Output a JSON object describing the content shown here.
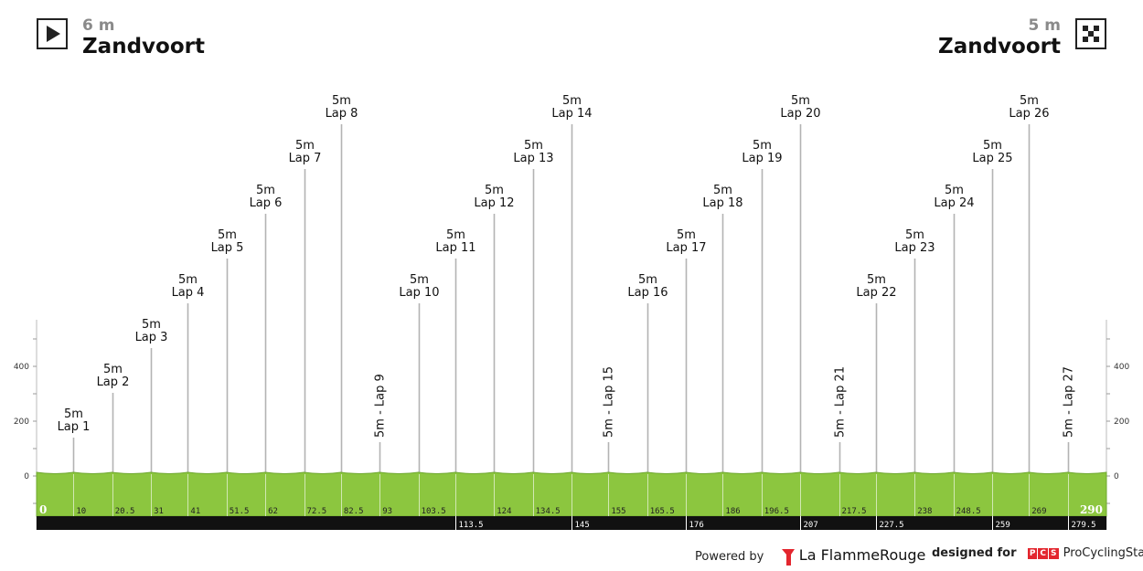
{
  "header": {
    "start": {
      "altitude": "6 m",
      "place": "Zandvoort",
      "icon": "play-icon"
    },
    "finish": {
      "altitude": "5 m",
      "place": "Zandvoort",
      "icon": "checkered-flag-icon"
    }
  },
  "footer": {
    "powered_by": "Powered by",
    "lfr_brand": "La FlammeRouge",
    "designed_for": "designed for",
    "pcs_letters": [
      "P",
      "C",
      "S"
    ],
    "pcs_brand": "ProCyclingStats"
  },
  "colors": {
    "profile_fill": "#8cc63f",
    "profile_line": "#6fa82f",
    "km_bar": "#111111",
    "marker_line": "#b3b3b3"
  },
  "chart_data": {
    "type": "area",
    "title": "",
    "xlabel": "",
    "ylabel": "",
    "x_range": [
      0,
      290
    ],
    "y_range": [
      -150,
      560
    ],
    "y_ticks": [
      0,
      200,
      400
    ],
    "y_tick_labels": [
      "0",
      "200",
      "400"
    ],
    "x": [
      0,
      10,
      20.5,
      31,
      41,
      51.5,
      62,
      72.5,
      82.5,
      93,
      103.5,
      113.5,
      124,
      134.5,
      145,
      155,
      165.5,
      176,
      186,
      196.5,
      207,
      217.5,
      227.5,
      238,
      248.5,
      259,
      269,
      279.5,
      290
    ],
    "elevation": [
      6,
      5,
      5,
      5,
      5,
      5,
      5,
      5,
      5,
      5,
      5,
      5,
      5,
      5,
      5,
      5,
      5,
      5,
      5,
      5,
      5,
      5,
      5,
      5,
      5,
      5,
      5,
      5,
      5
    ],
    "km_labels_top": [
      {
        "km": 10,
        "label": "10"
      },
      {
        "km": 20.5,
        "label": "20.5"
      },
      {
        "km": 31,
        "label": "31"
      },
      {
        "km": 41,
        "label": "41"
      },
      {
        "km": 51.5,
        "label": "51.5"
      },
      {
        "km": 62,
        "label": "62"
      },
      {
        "km": 72.5,
        "label": "72.5"
      },
      {
        "km": 82.5,
        "label": "82.5"
      },
      {
        "km": 93,
        "label": "93"
      },
      {
        "km": 103.5,
        "label": "103.5"
      },
      {
        "km": 124,
        "label": "124"
      },
      {
        "km": 134.5,
        "label": "134.5"
      },
      {
        "km": 155,
        "label": "155"
      },
      {
        "km": 165.5,
        "label": "165.5"
      },
      {
        "km": 186,
        "label": "186"
      },
      {
        "km": 196.5,
        "label": "196.5"
      },
      {
        "km": 217.5,
        "label": "217.5"
      },
      {
        "km": 238,
        "label": "238"
      },
      {
        "km": 248.5,
        "label": "248.5"
      },
      {
        "km": 269,
        "label": "269"
      }
    ],
    "km_labels_bottom": [
      {
        "km": 113.5,
        "label": "113.5"
      },
      {
        "km": 145,
        "label": "145"
      },
      {
        "km": 176,
        "label": "176"
      },
      {
        "km": 207,
        "label": "207"
      },
      {
        "km": 227.5,
        "label": "227.5"
      },
      {
        "km": 259,
        "label": "259"
      },
      {
        "km": 279.5,
        "label": "279.5"
      }
    ],
    "start_km_label": "0",
    "end_km_label": "290",
    "markers": [
      {
        "km": 10,
        "alt": "5m",
        "name": "Lap 1",
        "level": 1
      },
      {
        "km": 20.5,
        "alt": "5m",
        "name": "Lap 2",
        "level": 2
      },
      {
        "km": 31,
        "alt": "5m",
        "name": "Lap 3",
        "level": 3
      },
      {
        "km": 41,
        "alt": "5m",
        "name": "Lap 4",
        "level": 4
      },
      {
        "km": 51.5,
        "alt": "5m",
        "name": "Lap 5",
        "level": 5
      },
      {
        "km": 62,
        "alt": "5m",
        "name": "Lap 6",
        "level": 6
      },
      {
        "km": 72.5,
        "alt": "5m",
        "name": "Lap 7",
        "level": 7
      },
      {
        "km": 82.5,
        "alt": "5m",
        "name": "Lap 8",
        "level": 8
      },
      {
        "km": 93,
        "alt": "5m",
        "name": "Lap 9",
        "label": "5m - Lap 9",
        "vertical": true
      },
      {
        "km": 103.5,
        "alt": "5m",
        "name": "Lap 10",
        "level": 4
      },
      {
        "km": 113.5,
        "alt": "5m",
        "name": "Lap 11",
        "level": 5
      },
      {
        "km": 124,
        "alt": "5m",
        "name": "Lap 12",
        "level": 6
      },
      {
        "km": 134.5,
        "alt": "5m",
        "name": "Lap 13",
        "level": 7
      },
      {
        "km": 145,
        "alt": "5m",
        "name": "Lap 14",
        "level": 8
      },
      {
        "km": 155,
        "alt": "5m",
        "name": "Lap 15",
        "label": "5m - Lap 15",
        "vertical": true
      },
      {
        "km": 165.5,
        "alt": "5m",
        "name": "Lap 16",
        "level": 4
      },
      {
        "km": 176,
        "alt": "5m",
        "name": "Lap 17",
        "level": 5
      },
      {
        "km": 186,
        "alt": "5m",
        "name": "Lap 18",
        "level": 6
      },
      {
        "km": 196.5,
        "alt": "5m",
        "name": "Lap 19",
        "level": 7
      },
      {
        "km": 207,
        "alt": "5m",
        "name": "Lap 20",
        "level": 8
      },
      {
        "km": 217.5,
        "alt": "5m",
        "name": "Lap 21",
        "label": "5m - Lap 21",
        "vertical": true
      },
      {
        "km": 227.5,
        "alt": "5m",
        "name": "Lap 22",
        "level": 4
      },
      {
        "km": 238,
        "alt": "5m",
        "name": "Lap 23",
        "level": 5
      },
      {
        "km": 248.5,
        "alt": "5m",
        "name": "Lap 24",
        "level": 6
      },
      {
        "km": 259,
        "alt": "5m",
        "name": "Lap 25",
        "level": 7
      },
      {
        "km": 269,
        "alt": "5m",
        "name": "Lap 26",
        "level": 8
      },
      {
        "km": 279.5,
        "alt": "5m",
        "name": "Lap 27",
        "label": "5m - Lap 27",
        "vertical": true
      }
    ]
  }
}
